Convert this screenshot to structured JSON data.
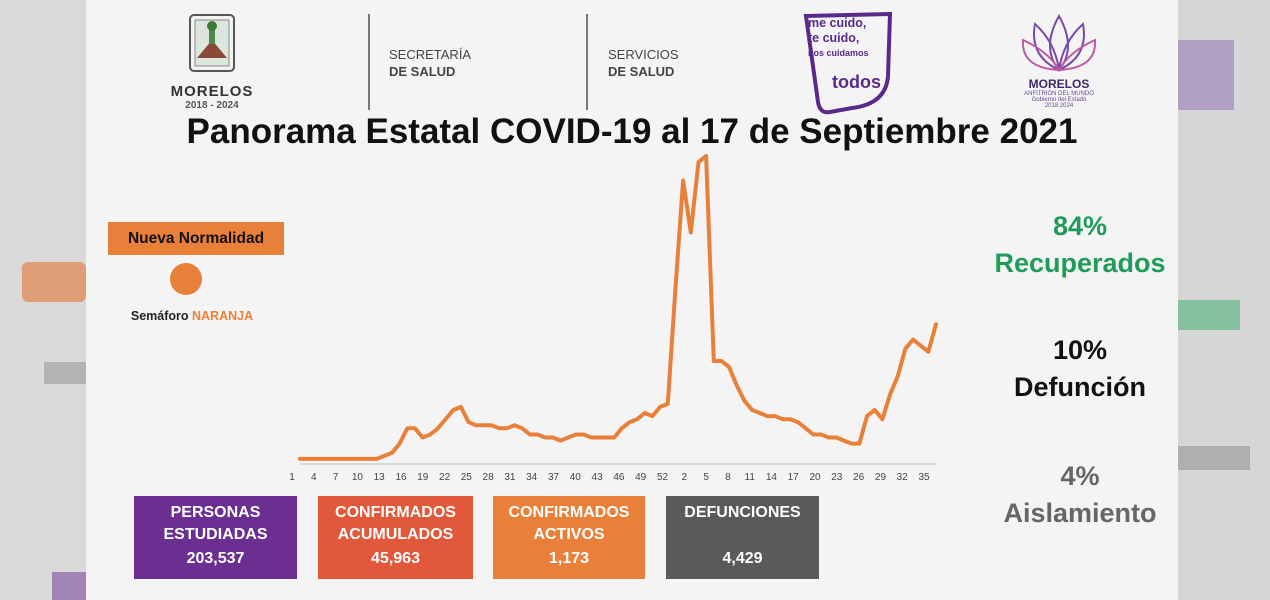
{
  "header": {
    "morelos_name": "MORELOS",
    "morelos_years": "2018 - 2024",
    "secretaria_line1": "SECRETARÍA",
    "secretaria_line2": "DE SALUD",
    "servicios_line1": "SERVICIOS",
    "servicios_line2": "DE SALUD",
    "cuido_line1": "me cuido,",
    "cuido_line2": "te cuido,",
    "cuido_line3": "nos cuidamos",
    "cuido_line4": "todos",
    "anfitrion_name": "MORELOS",
    "anfitrion_sub1": "ANFITRIÓN DEL MUNDO",
    "anfitrion_sub2": "Gobierno del Estado",
    "anfitrion_sub3": "2018 2024"
  },
  "title": "Panorama Estatal COVID-19 al 17 de Septiembre 2021",
  "status": {
    "badge": "Nueva Normalidad",
    "semaforo_label": "Semáforo",
    "semaforo_value": "NARANJA",
    "color": "#e9803a"
  },
  "stats": {
    "recuperados_pct": "84%",
    "recuperados_label": "Recuperados",
    "defuncion_pct": "10%",
    "defuncion_label": "Defunción",
    "aislamiento_pct": "4%",
    "aislamiento_label": "Aislamiento"
  },
  "boxes": [
    {
      "line1": "PERSONAS",
      "line2": "ESTUDIADAS",
      "value": "203,537",
      "color": "#6a2f91"
    },
    {
      "line1": "CONFIRMADOS",
      "line2": "ACUMULADOS",
      "value": "45,963",
      "color": "#e1583a"
    },
    {
      "line1": "CONFIRMADOS",
      "line2": "ACTIVOS",
      "value": "1,173",
      "color": "#e9803a"
    },
    {
      "line1": "DEFUNCIONES",
      "line2": "",
      "value": "4,429",
      "color": "#5a5a5a"
    }
  ],
  "chart_data": {
    "type": "line",
    "title": "",
    "xlabel": "",
    "ylabel": "",
    "grid": false,
    "color": "#e9803a",
    "x_tick_labels": [
      "1",
      "4",
      "7",
      "10",
      "13",
      "16",
      "19",
      "22",
      "25",
      "28",
      "31",
      "34",
      "37",
      "40",
      "43",
      "46",
      "49",
      "52",
      "2",
      "5",
      "8",
      "11",
      "14",
      "17",
      "20",
      "23",
      "26",
      "29",
      "32",
      "35"
    ],
    "values": [
      1,
      1,
      1,
      1,
      1,
      1,
      1,
      1,
      1,
      1,
      1,
      2,
      3,
      6,
      11,
      11,
      8,
      9,
      11,
      14,
      17,
      18,
      13,
      12,
      12,
      12,
      11,
      11,
      12,
      11,
      9,
      9,
      8,
      8,
      7,
      8,
      9,
      9,
      8,
      8,
      8,
      8,
      11,
      13,
      14,
      16,
      15,
      18,
      19,
      57,
      92,
      75,
      98,
      100,
      33,
      33,
      31,
      25,
      20,
      17,
      16,
      15,
      15,
      14,
      14,
      13,
      11,
      9,
      9,
      8,
      8,
      7,
      6,
      6,
      15,
      17,
      14,
      22,
      28,
      37,
      40,
      38,
      36,
      45
    ],
    "ylim": [
      0,
      100
    ]
  }
}
